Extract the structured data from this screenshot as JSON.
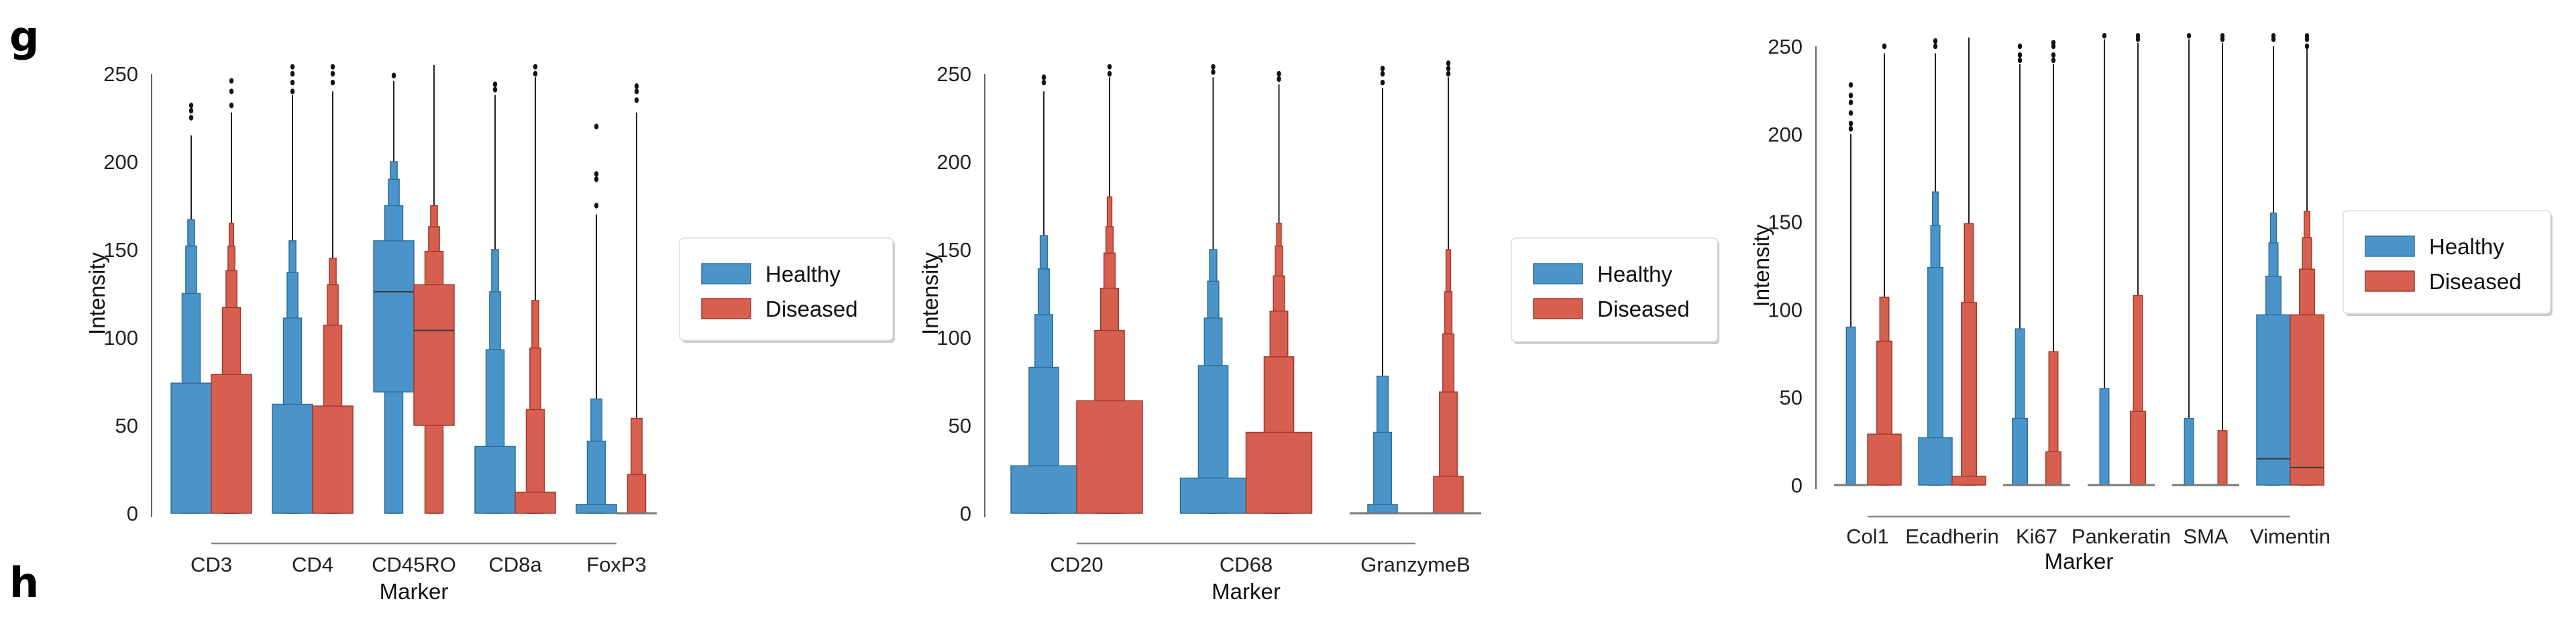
{
  "panel_labels": [
    "g",
    "h"
  ],
  "colors": {
    "Healthy": "#4a94c9",
    "Diseased": "#d65f50",
    "edge_Healthy": "#2f6f9c",
    "edge_Diseased": "#a33a2e"
  },
  "chart_data": [
    {
      "type": "boxen",
      "xlabel": "Marker",
      "ylabel": "Intensity",
      "ylim": [
        0,
        250
      ],
      "yticks": [
        0,
        50,
        100,
        150,
        200,
        250
      ],
      "grid": false,
      "legend_placement": "right",
      "legend": [
        "Healthy",
        "Diseased"
      ],
      "categories": [
        "CD3",
        "CD4",
        "CD45RO",
        "CD8a",
        "FoxP3"
      ],
      "series": [
        {
          "name": "Healthy",
          "values": [
            {
              "levels": [
                [
                  0,
                  74
                ],
                [
                  0,
                  125
                ],
                [
                  0,
                  152
                ],
                [
                  0,
                  167
                ]
              ],
              "whisker": 215,
              "outliers": [
                225,
                229,
                232
              ]
            },
            {
              "levels": [
                [
                  0,
                  62
                ],
                [
                  0,
                  111
                ],
                [
                  0,
                  137
                ],
                [
                  0,
                  155
                ]
              ],
              "whisker": 238,
              "outliers": [
                240,
                245,
                250,
                254
              ]
            },
            {
              "levels": [
                [
                  69,
                  155
                ],
                [
                  0,
                  175
                ],
                [
                  0,
                  190
                ],
                [
                  0,
                  200
                ]
              ],
              "median": 126,
              "whisker": 246,
              "outliers": [
                249
              ]
            },
            {
              "levels": [
                [
                  0,
                  38
                ],
                [
                  0,
                  93
                ],
                [
                  0,
                  126
                ],
                [
                  0,
                  150
                ]
              ],
              "whisker": 238,
              "outliers": [
                241,
                244
              ]
            },
            {
              "levels": [
                [
                  0,
                  5
                ],
                [
                  0,
                  41
                ],
                [
                  0,
                  65
                ]
              ],
              "whisker": 170,
              "outliers": [
                175,
                190,
                193,
                220
              ]
            }
          ]
        },
        {
          "name": "Diseased",
          "values": [
            {
              "levels": [
                [
                  0,
                  79
                ],
                [
                  0,
                  117
                ],
                [
                  0,
                  138
                ],
                [
                  0,
                  152
                ],
                [
                  0,
                  165
                ]
              ],
              "whisker": 228,
              "outliers": [
                232,
                240,
                246
              ]
            },
            {
              "levels": [
                [
                  0,
                  61
                ],
                [
                  0,
                  107
                ],
                [
                  0,
                  130
                ],
                [
                  0,
                  145
                ]
              ],
              "whisker": 240,
              "outliers": [
                245,
                250,
                254
              ]
            },
            {
              "levels": [
                [
                  50,
                  130
                ],
                [
                  0,
                  149
                ],
                [
                  0,
                  163
                ],
                [
                  0,
                  175
                ]
              ],
              "median": 104,
              "whisker": 255,
              "outliers": []
            },
            {
              "levels": [
                [
                  0,
                  12
                ],
                [
                  0,
                  59
                ],
                [
                  0,
                  94
                ],
                [
                  0,
                  121
                ]
              ],
              "whisker": 248,
              "outliers": [
                250,
                254
              ]
            },
            {
              "levels": [
                [
                  0,
                  0
                ],
                [
                  0,
                  22
                ],
                [
                  0,
                  54
                ]
              ],
              "whisker": 228,
              "outliers": [
                235,
                240,
                243
              ]
            }
          ]
        }
      ]
    },
    {
      "type": "boxen",
      "xlabel": "Marker",
      "ylabel": "Intensity",
      "ylim": [
        0,
        250
      ],
      "yticks": [
        0,
        50,
        100,
        150,
        200,
        250
      ],
      "grid": false,
      "legend_placement": "right",
      "legend": [
        "Healthy",
        "Diseased"
      ],
      "categories": [
        "CD20",
        "CD68",
        "GranzymeB"
      ],
      "series": [
        {
          "name": "Healthy",
          "values": [
            {
              "levels": [
                [
                  0,
                  27
                ],
                [
                  0,
                  83
                ],
                [
                  0,
                  113
                ],
                [
                  0,
                  139
                ],
                [
                  0,
                  158
                ]
              ],
              "whisker": 240,
              "outliers": [
                245,
                248
              ]
            },
            {
              "levels": [
                [
                  0,
                  20
                ],
                [
                  0,
                  84
                ],
                [
                  0,
                  111
                ],
                [
                  0,
                  132
                ],
                [
                  0,
                  150
                ]
              ],
              "whisker": 248,
              "outliers": [
                251,
                254
              ]
            },
            {
              "levels": [
                [
                  0,
                  0
                ],
                [
                  0,
                  5
                ],
                [
                  0,
                  46
                ],
                [
                  0,
                  78
                ]
              ],
              "whisker": 242,
              "outliers": [
                245,
                250,
                253
              ]
            }
          ]
        },
        {
          "name": "Diseased",
          "values": [
            {
              "levels": [
                [
                  0,
                  64
                ],
                [
                  0,
                  104
                ],
                [
                  0,
                  128
                ],
                [
                  0,
                  148
                ],
                [
                  0,
                  163
                ],
                [
                  0,
                  180
                ]
              ],
              "whisker": 248,
              "outliers": [
                250,
                254
              ]
            },
            {
              "levels": [
                [
                  0,
                  46
                ],
                [
                  0,
                  89
                ],
                [
                  0,
                  115
                ],
                [
                  0,
                  135
                ],
                [
                  0,
                  152
                ],
                [
                  0,
                  165
                ]
              ],
              "whisker": 244,
              "outliers": [
                247,
                250
              ]
            },
            {
              "levels": [
                [
                  0,
                  0
                ],
                [
                  0,
                  21
                ],
                [
                  0,
                  69
                ],
                [
                  0,
                  102
                ],
                [
                  0,
                  126
                ],
                [
                  0,
                  150
                ]
              ],
              "whisker": 248,
              "outliers": [
                250,
                253,
                256
              ]
            }
          ]
        }
      ]
    },
    {
      "type": "boxen",
      "xlabel": "Marker",
      "ylabel": "Intensity",
      "ylim": [
        0,
        250
      ],
      "yticks": [
        0,
        50,
        100,
        150,
        200,
        250
      ],
      "grid": false,
      "legend_placement": "right",
      "legend": [
        "Healthy",
        "Diseased"
      ],
      "categories": [
        "Col1",
        "Ecadherin",
        "Ki67",
        "Pankeratin",
        "SMA",
        "Vimentin"
      ],
      "series": [
        {
          "name": "Healthy",
          "values": [
            {
              "levels": [
                [
                  0,
                  0
                ],
                [
                  0,
                  0
                ],
                [
                  0,
                  90
                ]
              ],
              "whisker": 200,
              "outliers": [
                203,
                206,
                212,
                218,
                222,
                228
              ]
            },
            {
              "levels": [
                [
                  0,
                  27
                ],
                [
                  0,
                  124
                ],
                [
                  0,
                  148
                ],
                [
                  0,
                  167
                ]
              ],
              "whisker": 246,
              "outliers": [
                250,
                253
              ]
            },
            {
              "levels": [
                [
                  0,
                  0
                ],
                [
                  0,
                  38
                ],
                [
                  0,
                  89
                ]
              ],
              "whisker": 240,
              "outliers": [
                242,
                245,
                250
              ]
            },
            {
              "levels": [
                [
                  0,
                  0
                ],
                [
                  0,
                  0
                ],
                [
                  0,
                  55
                ]
              ],
              "whisker": 254,
              "outliers": [
                256
              ]
            },
            {
              "levels": [
                [
                  0,
                  0
                ],
                [
                  0,
                  0
                ],
                [
                  0,
                  38
                ]
              ],
              "whisker": 254,
              "outliers": [
                256
              ]
            },
            {
              "levels": [
                [
                  0,
                  97
                ],
                [
                  0,
                  119
                ],
                [
                  0,
                  138
                ],
                [
                  0,
                  155
                ]
              ],
              "median": 15,
              "whisker": 250,
              "outliers": [
                254,
                256
              ]
            }
          ]
        },
        {
          "name": "Diseased",
          "values": [
            {
              "levels": [
                [
                  0,
                  29
                ],
                [
                  0,
                  82
                ],
                [
                  0,
                  107
                ]
              ],
              "whisker": 246,
              "outliers": [
                250
              ]
            },
            {
              "levels": [
                [
                  0,
                  5
                ],
                [
                  0,
                  104
                ],
                [
                  0,
                  149
                ]
              ],
              "whisker": 255,
              "outliers": []
            },
            {
              "levels": [
                [
                  0,
                  0
                ],
                [
                  0,
                  19
                ],
                [
                  0,
                  76
                ]
              ],
              "whisker": 240,
              "outliers": [
                242,
                245,
                250,
                252
              ]
            },
            {
              "levels": [
                [
                  0,
                  0
                ],
                [
                  0,
                  42
                ],
                [
                  0,
                  108
                ]
              ],
              "whisker": 252,
              "outliers": [
                254,
                256
              ]
            },
            {
              "levels": [
                [
                  0,
                  0
                ],
                [
                  0,
                  0
                ],
                [
                  0,
                  31
                ]
              ],
              "whisker": 252,
              "outliers": [
                254,
                256
              ]
            },
            {
              "levels": [
                [
                  0,
                  97
                ],
                [
                  0,
                  123
                ],
                [
                  0,
                  141
                ],
                [
                  0,
                  156
                ]
              ],
              "median": 10,
              "whisker": 250,
              "outliers": [
                250,
                254,
                256
              ]
            }
          ]
        }
      ]
    }
  ]
}
